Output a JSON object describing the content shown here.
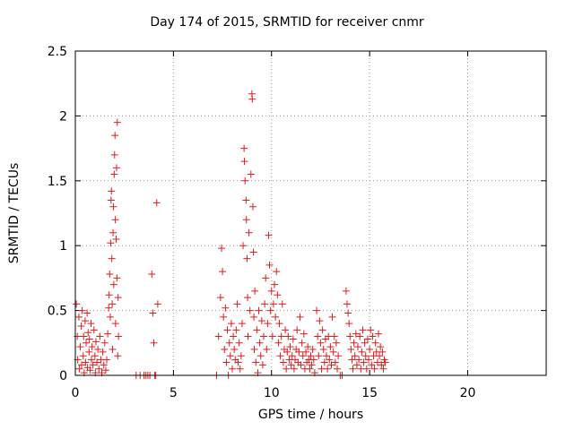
{
  "chart_data": {
    "type": "scatter",
    "title": "Day 174 of 2015, SRMTID for receiver cnmr",
    "xlabel": "GPS time / hours",
    "ylabel": "SRMTID / TECUs",
    "xlim": [
      0,
      24
    ],
    "ylim": [
      0,
      2.5
    ],
    "xticks": [
      0,
      5,
      10,
      15,
      20
    ],
    "yticks": [
      0,
      0.5,
      1,
      1.5,
      2,
      2.5
    ],
    "xtick_labels": [
      "0",
      "5",
      "10",
      "15",
      "20"
    ],
    "ytick_labels": [
      "0",
      "0.5",
      "1",
      "1.5",
      "2",
      "2.5"
    ],
    "grid": true,
    "marker": "+",
    "marker_color": "#e41a1c",
    "series": [
      {
        "points": [
          [
            0.05,
            0.55
          ],
          [
            0.1,
            0.3
          ],
          [
            0.12,
            0.12
          ],
          [
            0.18,
            0.45
          ],
          [
            0.2,
            0.05
          ],
          [
            0.25,
            0.22
          ],
          [
            0.3,
            0.38
          ],
          [
            0.32,
            0.08
          ],
          [
            0.35,
            0.5
          ],
          [
            0.4,
            0.15
          ],
          [
            0.42,
            0.3
          ],
          [
            0.45,
            0.02
          ],
          [
            0.5,
            0.42
          ],
          [
            0.52,
            0.1
          ],
          [
            0.55,
            0.25
          ],
          [
            0.6,
            0.48
          ],
          [
            0.62,
            0.06
          ],
          [
            0.65,
            0.33
          ],
          [
            0.7,
            0.18
          ],
          [
            0.72,
            0.28
          ],
          [
            0.75,
            0.04
          ],
          [
            0.8,
            0.4
          ],
          [
            0.82,
            0.12
          ],
          [
            0.85,
            0.22
          ],
          [
            0.9,
            0.08
          ],
          [
            0.95,
            0.35
          ],
          [
            1.0,
            0.15
          ],
          [
            1.02,
            0.02
          ],
          [
            1.05,
            0.26
          ],
          [
            1.1,
            0.1
          ],
          [
            1.15,
            0.2
          ],
          [
            1.2,
            0.05
          ],
          [
            1.25,
            0.3
          ],
          [
            1.3,
            0.12
          ],
          [
            1.35,
            0.02
          ],
          [
            1.4,
            0.18
          ],
          [
            1.45,
            0.08
          ],
          [
            1.5,
            0.25
          ],
          [
            1.55,
            0.04
          ],
          [
            1.6,
            0.12
          ],
          [
            1.65,
            0.32
          ],
          [
            1.7,
            0.52
          ],
          [
            1.72,
            0.62
          ],
          [
            1.75,
            0.78
          ],
          [
            1.78,
            0.45
          ],
          [
            1.8,
            1.02
          ],
          [
            1.82,
            1.35
          ],
          [
            1.84,
            1.42
          ],
          [
            1.86,
            0.9
          ],
          [
            1.88,
            0.55
          ],
          [
            1.9,
            0.2
          ],
          [
            1.92,
            1.1
          ],
          [
            1.94,
            1.3
          ],
          [
            1.96,
            0.7
          ],
          [
            1.98,
            1.55
          ],
          [
            2.0,
            1.7
          ],
          [
            2.02,
            1.85
          ],
          [
            2.04,
            1.2
          ],
          [
            2.05,
            0.4
          ],
          [
            2.08,
            1.05
          ],
          [
            2.1,
            1.6
          ],
          [
            2.12,
            0.75
          ],
          [
            2.14,
            1.95
          ],
          [
            2.16,
            0.15
          ],
          [
            2.18,
            0.6
          ],
          [
            2.2,
            0.3
          ],
          [
            3.1,
            0.0
          ],
          [
            3.3,
            0.0
          ],
          [
            3.5,
            0.0
          ],
          [
            3.6,
            0.0
          ],
          [
            3.7,
            0.0
          ],
          [
            3.8,
            0.0
          ],
          [
            3.9,
            0.78
          ],
          [
            3.95,
            0.48
          ],
          [
            4.0,
            0.25
          ],
          [
            4.05,
            0.0
          ],
          [
            4.1,
            0.0
          ],
          [
            4.15,
            1.33
          ],
          [
            4.2,
            0.55
          ],
          [
            7.2,
            0.0
          ],
          [
            7.3,
            0.3
          ],
          [
            7.4,
            0.6
          ],
          [
            7.45,
            0.98
          ],
          [
            7.5,
            0.8
          ],
          [
            7.55,
            0.45
          ],
          [
            7.6,
            0.2
          ],
          [
            7.65,
            0.52
          ],
          [
            7.7,
            0.1
          ],
          [
            7.75,
            0.35
          ],
          [
            7.8,
            0.0
          ],
          [
            7.85,
            0.25
          ],
          [
            7.9,
            0.15
          ],
          [
            7.95,
            0.4
          ],
          [
            8.0,
            0.05
          ],
          [
            8.05,
            0.3
          ],
          [
            8.1,
            0.2
          ],
          [
            8.15,
            0.12
          ],
          [
            8.2,
            0.35
          ],
          [
            8.25,
            0.55
          ],
          [
            8.3,
            0.1
          ],
          [
            8.35,
            0.25
          ],
          [
            8.4,
            0.05
          ],
          [
            8.45,
            0.15
          ],
          [
            8.5,
            0.4
          ],
          [
            8.55,
            1.0
          ],
          [
            8.6,
            1.75
          ],
          [
            8.62,
            1.65
          ],
          [
            8.65,
            1.5
          ],
          [
            8.7,
            1.35
          ],
          [
            8.72,
            1.2
          ],
          [
            8.75,
            0.9
          ],
          [
            8.78,
            0.6
          ],
          [
            8.8,
            0.3
          ],
          [
            8.85,
            1.1
          ],
          [
            8.9,
            0.5
          ],
          [
            8.95,
            1.55
          ],
          [
            9.0,
            2.17
          ],
          [
            9.02,
            2.13
          ],
          [
            9.05,
            1.3
          ],
          [
            9.08,
            0.95
          ],
          [
            9.1,
            0.45
          ],
          [
            9.12,
            0.2
          ],
          [
            9.15,
            0.65
          ],
          [
            9.2,
            0.1
          ],
          [
            9.25,
            0.35
          ],
          [
            9.3,
            0.02
          ],
          [
            9.35,
            0.5
          ],
          [
            9.4,
            0.25
          ],
          [
            9.45,
            0.15
          ],
          [
            9.5,
            0.42
          ],
          [
            9.55,
            0.08
          ],
          [
            9.6,
            0.3
          ],
          [
            9.65,
            0.55
          ],
          [
            9.7,
            0.75
          ],
          [
            9.75,
            0.2
          ],
          [
            9.8,
            0.4
          ],
          [
            9.85,
            1.08
          ],
          [
            9.9,
            0.85
          ],
          [
            9.95,
            0.5
          ],
          [
            10.0,
            0.65
          ],
          [
            10.05,
            0.3
          ],
          [
            10.1,
            0.55
          ],
          [
            10.15,
            0.7
          ],
          [
            10.2,
            0.45
          ],
          [
            10.25,
            0.8
          ],
          [
            10.3,
            0.62
          ],
          [
            10.35,
            0.25
          ],
          [
            10.4,
            0.4
          ],
          [
            10.45,
            0.15
          ],
          [
            10.5,
            0.3
          ],
          [
            10.55,
            0.55
          ],
          [
            10.6,
            0.1
          ],
          [
            10.65,
            0.2
          ],
          [
            10.7,
            0.35
          ],
          [
            10.75,
            0.05
          ],
          [
            10.8,
            0.18
          ],
          [
            10.85,
            0.3
          ],
          [
            10.9,
            0.12
          ],
          [
            10.95,
            0.22
          ],
          [
            11.0,
            0.08
          ],
          [
            11.05,
            0.15
          ],
          [
            11.1,
            0.28
          ],
          [
            11.15,
            0.05
          ],
          [
            11.2,
            0.12
          ],
          [
            11.25,
            0.2
          ],
          [
            11.3,
            0.35
          ],
          [
            11.35,
            0.1
          ],
          [
            11.4,
            0.18
          ],
          [
            11.45,
            0.45
          ],
          [
            11.5,
            0.08
          ],
          [
            11.55,
            0.25
          ],
          [
            11.6,
            0.15
          ],
          [
            11.65,
            0.32
          ],
          [
            11.7,
            0.05
          ],
          [
            11.75,
            0.18
          ],
          [
            11.8,
            0.1
          ],
          [
            11.85,
            0.22
          ],
          [
            11.9,
            0.12
          ],
          [
            11.95,
            0.05
          ],
          [
            12.0,
            0.15
          ],
          [
            12.05,
            0.08
          ],
          [
            12.1,
            0.2
          ],
          [
            12.15,
            0.12
          ],
          [
            12.2,
            0.02
          ],
          [
            12.3,
            0.5
          ],
          [
            12.35,
            0.3
          ],
          [
            12.4,
            0.15
          ],
          [
            12.45,
            0.42
          ],
          [
            12.5,
            0.25
          ],
          [
            12.55,
            0.05
          ],
          [
            12.6,
            0.35
          ],
          [
            12.65,
            0.2
          ],
          [
            12.7,
            0.1
          ],
          [
            12.75,
            0.28
          ],
          [
            12.8,
            0.15
          ],
          [
            12.85,
            0.05
          ],
          [
            12.9,
            0.3
          ],
          [
            12.95,
            0.12
          ],
          [
            13.0,
            0.22
          ],
          [
            13.05,
            0.08
          ],
          [
            13.1,
            0.45
          ],
          [
            13.15,
            0.18
          ],
          [
            13.2,
            0.3
          ],
          [
            13.25,
            0.1
          ],
          [
            13.3,
            0.25
          ],
          [
            13.35,
            0.05
          ],
          [
            13.4,
            0.15
          ],
          [
            13.5,
            0.0
          ],
          [
            13.6,
            0.0
          ],
          [
            13.8,
            0.65
          ],
          [
            13.85,
            0.55
          ],
          [
            13.9,
            0.48
          ],
          [
            13.95,
            0.4
          ],
          [
            14.0,
            0.3
          ],
          [
            14.05,
            0.2
          ],
          [
            14.1,
            0.12
          ],
          [
            14.15,
            0.05
          ],
          [
            14.2,
            0.25
          ],
          [
            14.25,
            0.15
          ],
          [
            14.3,
            0.32
          ],
          [
            14.35,
            0.08
          ],
          [
            14.4,
            0.22
          ],
          [
            14.45,
            0.12
          ],
          [
            14.5,
            0.3
          ],
          [
            14.55,
            0.05
          ],
          [
            14.6,
            0.18
          ],
          [
            14.65,
            0.35
          ],
          [
            14.7,
            0.1
          ],
          [
            14.75,
            0.25
          ],
          [
            14.8,
            0.15
          ],
          [
            14.85,
            0.05
          ],
          [
            14.9,
            0.28
          ],
          [
            14.95,
            0.12
          ],
          [
            15.0,
            0.2
          ],
          [
            15.05,
            0.35
          ],
          [
            15.1,
            0.08
          ],
          [
            15.15,
            0.3
          ],
          [
            15.2,
            0.15
          ],
          [
            15.25,
            0.05
          ],
          [
            15.3,
            0.25
          ],
          [
            15.35,
            0.18
          ],
          [
            15.4,
            0.1
          ],
          [
            15.45,
            0.32
          ],
          [
            15.5,
            0.15
          ],
          [
            15.55,
            0.22
          ],
          [
            15.6,
            0.08
          ],
          [
            15.65,
            0.18
          ],
          [
            15.7,
            0.05
          ],
          [
            15.75,
            0.12
          ],
          [
            15.8,
            0.1
          ]
        ]
      }
    ]
  }
}
